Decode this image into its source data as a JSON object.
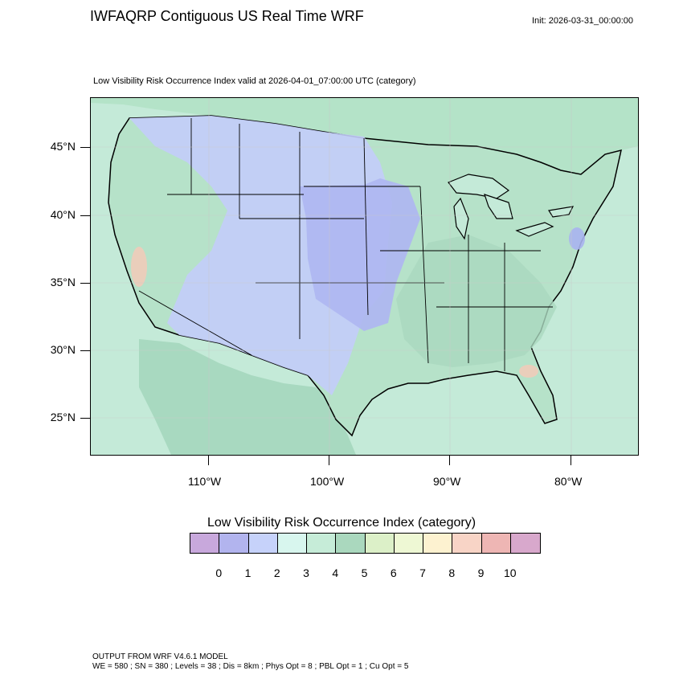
{
  "header": {
    "title": "IWFAQRP Contiguous US Real Time WRF",
    "init": "Init: 2026-03-31_00:00:00"
  },
  "map": {
    "subtitle": "Low Visibility Risk Occurrence Index valid at 2026-04-01_07:00:00 UTC   (category)",
    "lat_labels": [
      "45°N",
      "40°N",
      "35°N",
      "30°N",
      "25°N"
    ],
    "lon_labels": [
      "110°W",
      "100°W",
      "90°W",
      "80°W"
    ],
    "colors": {
      "ocean": "#c4ead8",
      "land_default": "#b6e2c9",
      "west_low": "#c3cdfa",
      "plains_low": "#aeb6f2",
      "east_moderate": "#aad8bf",
      "canada": "#b4e3c8",
      "mexico": "#a8d9c0",
      "high_spots": "#f7c9b8"
    }
  },
  "legend": {
    "title": "Low Visibility Risk Occurrence Index  (category)",
    "colors": [
      "#c8a8dc",
      "#b2b4ee",
      "#c6d2fa",
      "#d8f6ee",
      "#c6ecd8",
      "#aad8be",
      "#dcf0c8",
      "#eef8d4",
      "#fdf2d0",
      "#f8d4c6",
      "#eeb6b4",
      "#d8a8cc"
    ],
    "labels": [
      "0",
      "1",
      "2",
      "3",
      "4",
      "5",
      "6",
      "7",
      "8",
      "9",
      "10"
    ]
  },
  "footer": {
    "line1": "OUTPUT FROM WRF V4.6.1 MODEL",
    "line2": "WE = 580 ; SN = 380 ; Levels = 38 ; Dis = 8km ; Phys Opt = 8 ; PBL Opt = 1 ; Cu Opt = 5"
  }
}
